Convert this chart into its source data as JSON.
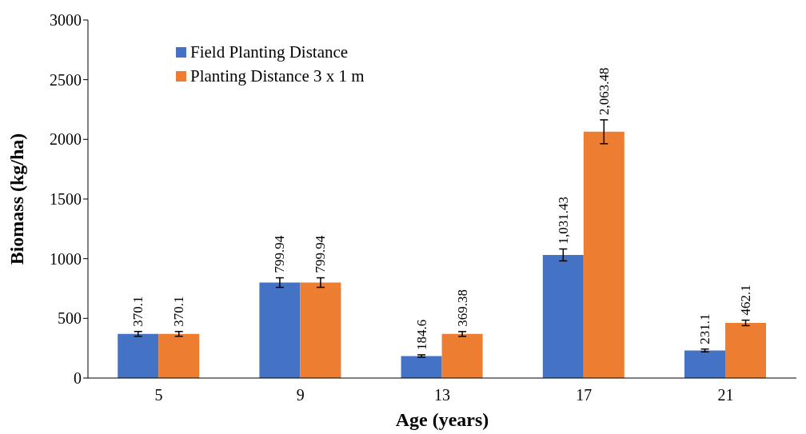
{
  "chart_data": {
    "type": "bar",
    "xlabel": "Age (years)",
    "ylabel": "Biomass (kg/ha)",
    "categories": [
      "5",
      "9",
      "13",
      "17",
      "21"
    ],
    "series": [
      {
        "name": "Field Planting Distance",
        "color": "#4472c4",
        "values": [
          370.1,
          799.94,
          184.6,
          1031.43,
          231.1
        ],
        "errors": [
          20,
          40,
          10,
          50,
          12
        ],
        "value_labels": [
          "370.1",
          "799.94",
          "184.6",
          "1,031.43",
          "231.1"
        ]
      },
      {
        "name": "Planting Distance 3 x 1 m",
        "color": "#ed7d31",
        "values": [
          370.1,
          799.94,
          369.38,
          2063.48,
          462.1
        ],
        "errors": [
          20,
          40,
          20,
          100,
          23
        ],
        "value_labels": [
          "370.1",
          "799.94",
          "369.38",
          "2,063.48",
          "462.1"
        ]
      }
    ],
    "ylim": [
      0,
      3000
    ],
    "yticks": [
      0,
      500,
      1000,
      1500,
      2000,
      2500,
      3000
    ],
    "grid": false,
    "legend": "top left"
  }
}
